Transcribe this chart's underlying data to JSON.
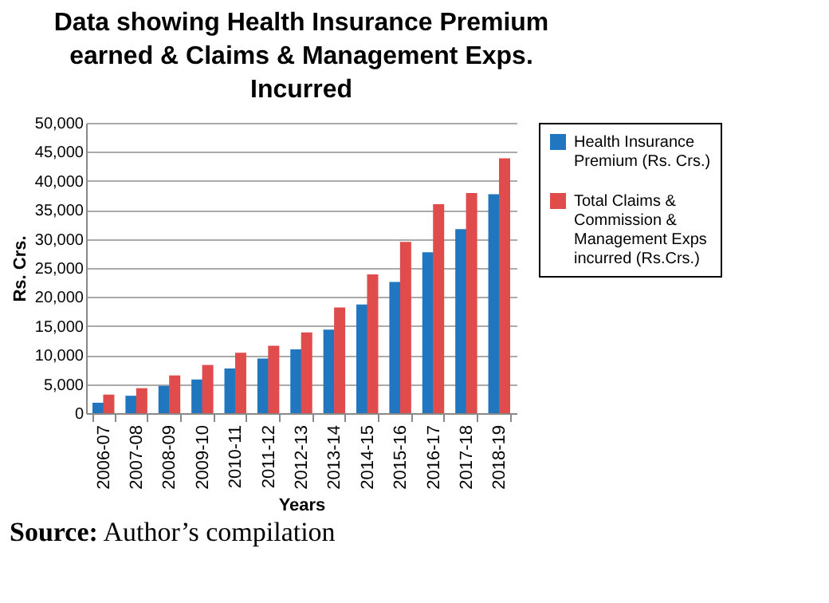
{
  "chart_data": {
    "type": "bar",
    "title": "Data showing Health Insurance Premium earned & Claims & Management Exps. Incurred",
    "xlabel": "Years",
    "ylabel": "Rs. Crs.",
    "categories": [
      "2006-07",
      "2007-08",
      "2008-09",
      "2009-10",
      "2010-11",
      "2011-12",
      "2012-13",
      "2013-14",
      "2014-15",
      "2015-16",
      "2016-17",
      "2017-18",
      "2018-19"
    ],
    "series": [
      {
        "name": "Health Insurance Premium (Rs. Crs.)",
        "color": "#2077c0",
        "values": [
          1800,
          3000,
          4700,
          5800,
          7700,
          9400,
          11000,
          14400,
          18700,
          22600,
          27700,
          31700,
          37700
        ]
      },
      {
        "name": "Total Claims & Commission & Management Exps incurred (Rs.Crs.)",
        "color": "#e04b4b",
        "values": [
          3200,
          4300,
          6500,
          8300,
          10400,
          11600,
          13900,
          18200,
          23900,
          29500,
          36000,
          37900,
          43900
        ]
      }
    ],
    "ylim": [
      0,
      50000
    ],
    "yticks": [
      0,
      {
        "value": 5000,
        "label": "5,000"
      },
      {
        "value": 10000,
        "label": "10,000"
      },
      {
        "value": 15000,
        "label": "15,000"
      },
      {
        "value": 20000,
        "label": "20,000"
      },
      {
        "value": 25000,
        "label": "25,000"
      },
      {
        "value": 30000,
        "label": "30,000"
      },
      {
        "value": 35000,
        "label": "35,000"
      },
      {
        "value": 40000,
        "label": "40,000"
      },
      {
        "value": 45000,
        "label": "45,000"
      },
      {
        "value": 50000,
        "label": "50,000"
      }
    ],
    "grid": "y",
    "legend": "right",
    "annotations": [
      "Source: Author’s compilation"
    ]
  }
}
